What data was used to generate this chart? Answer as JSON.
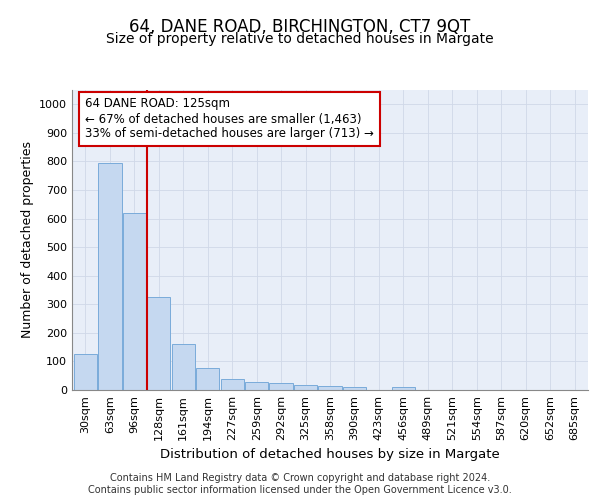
{
  "title": "64, DANE ROAD, BIRCHINGTON, CT7 9QT",
  "subtitle": "Size of property relative to detached houses in Margate",
  "xlabel": "Distribution of detached houses by size in Margate",
  "ylabel": "Number of detached properties",
  "categories": [
    "30sqm",
    "63sqm",
    "96sqm",
    "128sqm",
    "161sqm",
    "194sqm",
    "227sqm",
    "259sqm",
    "292sqm",
    "325sqm",
    "358sqm",
    "390sqm",
    "423sqm",
    "456sqm",
    "489sqm",
    "521sqm",
    "554sqm",
    "587sqm",
    "620sqm",
    "652sqm",
    "685sqm"
  ],
  "values": [
    125,
    795,
    620,
    327,
    162,
    78,
    40,
    28,
    23,
    16,
    14,
    10,
    0,
    10,
    0,
    0,
    0,
    0,
    0,
    0,
    0
  ],
  "bar_color": "#c5d8f0",
  "bar_edge_color": "#7aabda",
  "vline_pos": 2.5,
  "vline_color": "#cc0000",
  "annotation_text": "64 DANE ROAD: 125sqm\n← 67% of detached houses are smaller (1,463)\n33% of semi-detached houses are larger (713) →",
  "annotation_box_color": "#ffffff",
  "annotation_box_edge_color": "#cc0000",
  "ylim": [
    0,
    1050
  ],
  "yticks": [
    0,
    100,
    200,
    300,
    400,
    500,
    600,
    700,
    800,
    900,
    1000
  ],
  "grid_color": "#d0d8e8",
  "background_color": "#e8eef8",
  "footer_line1": "Contains HM Land Registry data © Crown copyright and database right 2024.",
  "footer_line2": "Contains public sector information licensed under the Open Government Licence v3.0.",
  "title_fontsize": 12,
  "subtitle_fontsize": 10,
  "tick_fontsize": 8,
  "ylabel_fontsize": 9,
  "xlabel_fontsize": 9.5,
  "footer_fontsize": 7,
  "annotation_fontsize": 8.5
}
